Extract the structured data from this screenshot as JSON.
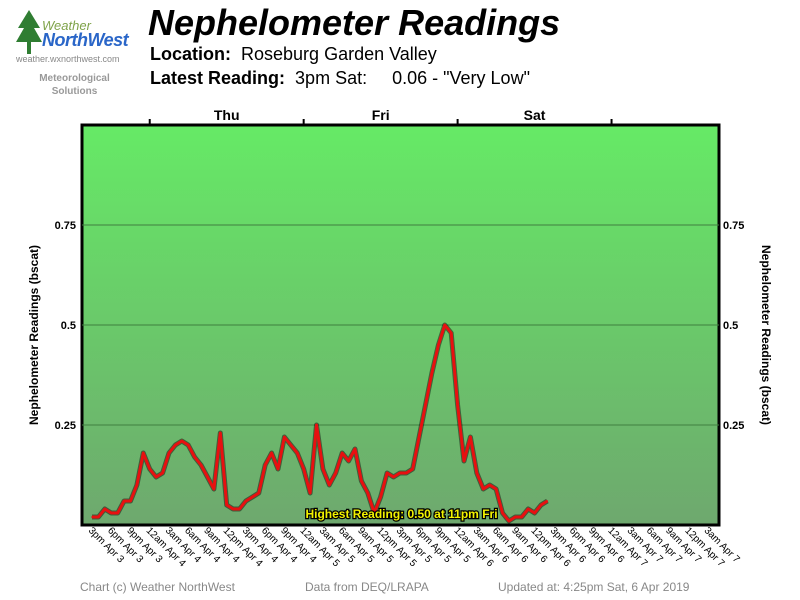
{
  "header": {
    "logo_word1": "Weather",
    "logo_word2": "NorthWest",
    "logo_url": "weather.wxnorthwest.com",
    "logo_sub1": "Meteorological",
    "logo_sub2": "Solutions",
    "title": "Nephelometer Readings",
    "location_label": "Location:",
    "location_value": "Roseburg Garden Valley",
    "latest_label": "Latest Reading:",
    "latest_time": "3pm Sat:",
    "latest_value": "0.06 - \"Very Low\""
  },
  "footer": {
    "copyright": "Chart (c) Weather NorthWest",
    "source": "Data from DEQ/LRAPA",
    "updated": "Updated at: 4:25pm Sat, 6 Apr 2019"
  },
  "colors": {
    "plot_top": "#66ea66",
    "plot_bottom": "#6ea86e",
    "line": "#e81010",
    "annotation_text": "#f2f200"
  },
  "chart_data": {
    "type": "line",
    "title": "Nephelometer Readings",
    "ylabel": "Nephelometer Readings (bscat)",
    "ylim": [
      0,
      1.0
    ],
    "yticks": [
      0.25,
      0.5,
      0.75
    ],
    "ytick_labels": [
      "0.25",
      "0.5",
      "0.75"
    ],
    "grid": true,
    "day_labels": [
      "Thu",
      "Fri",
      "Sat"
    ],
    "x_tick_labels": [
      "3pm Apr 3",
      "6pm Apr 3",
      "9pm Apr 3",
      "12am Apr 4",
      "3am Apr 4",
      "6am Apr 4",
      "9am Apr 4",
      "12pm Apr 4",
      "3pm Apr 4",
      "6pm Apr 4",
      "9pm Apr 4",
      "12am Apr 5",
      "3am Apr 5",
      "6am Apr 5",
      "9am Apr 5",
      "12pm Apr 5",
      "3pm Apr 5",
      "6pm Apr 5",
      "9pm Apr 5",
      "12am Apr 6",
      "3am Apr 6",
      "6am Apr 6",
      "9am Apr 6",
      "12pm Apr 6",
      "3pm Apr 6",
      "6pm Apr 6",
      "9pm Apr 6",
      "12am Apr 7",
      "3am Apr 7",
      "6am Apr 7",
      "9am Apr 7",
      "12pm Apr 7",
      "3am Apr 7"
    ],
    "x_start": "3pm Apr 3",
    "x_step": "1 hour",
    "series": [
      {
        "name": "",
        "values": [
          0.02,
          0.02,
          0.04,
          0.03,
          0.03,
          0.06,
          0.06,
          0.1,
          0.18,
          0.14,
          0.12,
          0.13,
          0.18,
          0.2,
          0.21,
          0.2,
          0.17,
          0.15,
          0.12,
          0.09,
          0.23,
          0.05,
          0.04,
          0.04,
          0.06,
          0.07,
          0.08,
          0.15,
          0.18,
          0.14,
          0.22,
          0.2,
          0.18,
          0.14,
          0.08,
          0.25,
          0.14,
          0.1,
          0.13,
          0.18,
          0.16,
          0.19,
          0.11,
          0.08,
          0.03,
          0.07,
          0.13,
          0.12,
          0.13,
          0.13,
          0.14,
          0.22,
          0.3,
          0.38,
          0.45,
          0.5,
          0.48,
          0.3,
          0.16,
          0.22,
          0.13,
          0.09,
          0.1,
          0.09,
          0.03,
          0.01,
          0.02,
          0.02,
          0.04,
          0.03,
          0.05,
          0.06
        ]
      }
    ],
    "annotation": "Highest Reading: 0.50 at 11pm Fri"
  }
}
